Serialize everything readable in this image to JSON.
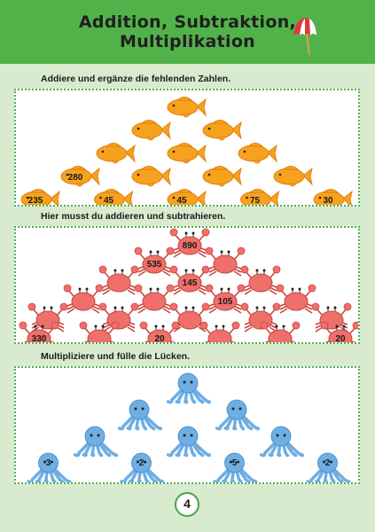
{
  "header": {
    "title_line1": "Addition, Subtraktion,",
    "title_line2": "Multiplikation",
    "icon": "beach-umbrella-icon",
    "color": "#52b24a"
  },
  "sections": [
    {
      "instruction": "Addiere und ergänze die fehlenden Zahlen.",
      "animal": "fish",
      "rows": [
        [
          ""
        ],
        [
          "",
          ""
        ],
        [
          "",
          "",
          ""
        ],
        [
          "280",
          "",
          "",
          ""
        ],
        [
          "235",
          "45",
          "45",
          "75",
          "30"
        ]
      ]
    },
    {
      "instruction": "Hier musst du addieren und subtrahieren.",
      "animal": "crab",
      "rows": [
        [
          "890"
        ],
        [
          "535",
          ""
        ],
        [
          "",
          "145",
          ""
        ],
        [
          "",
          "",
          "105",
          ""
        ],
        [
          "",
          "",
          "",
          "",
          ""
        ],
        [
          "330",
          "",
          "20",
          "",
          "",
          "20"
        ]
      ]
    },
    {
      "instruction": "Multipliziere und fülle die Lücken.",
      "animal": "octopus",
      "rows": [
        [
          ""
        ],
        [
          "",
          ""
        ],
        [
          "",
          "",
          ""
        ],
        [
          "3",
          "2",
          "5",
          "2"
        ]
      ]
    }
  ],
  "page_number": "4",
  "colors": {
    "fish": "#f6a21e",
    "crab": "#ef6f6a",
    "octopus": "#6eaee3",
    "border": "#4fb04a"
  }
}
